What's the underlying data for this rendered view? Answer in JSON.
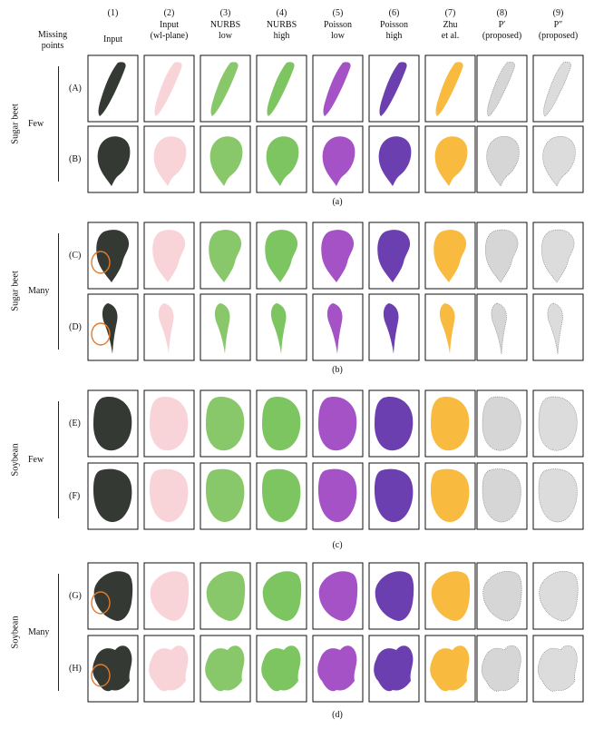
{
  "corner_label": [
    "Missing",
    "points"
  ],
  "columns": [
    {
      "num": "(1)",
      "line1": "Input",
      "line2": "",
      "italic": false
    },
    {
      "num": "(2)",
      "line1": "Input",
      "line2": "(wl-plane)",
      "italic": true
    },
    {
      "num": "(3)",
      "line1": "NURBS",
      "line2": "low",
      "italic": false
    },
    {
      "num": "(4)",
      "line1": "NURBS",
      "line2": "high",
      "italic": false
    },
    {
      "num": "(5)",
      "line1": "Poisson",
      "line2": "low",
      "italic": false
    },
    {
      "num": "(6)",
      "line1": "Poisson",
      "line2": "high",
      "italic": false
    },
    {
      "num": "(7)",
      "line1": "Zhu",
      "line2": "et al.",
      "italic": false
    },
    {
      "num": "(8)",
      "line1": "P′",
      "line2": "(proposed)",
      "italic": false
    },
    {
      "num": "(9)",
      "line1": "P″",
      "line2": "(proposed)",
      "italic": false
    }
  ],
  "groups": [
    {
      "caption": "(a)",
      "species": "Sugar beet",
      "missing": "Few",
      "rows": [
        {
          "label": "(A)",
          "shape": "slim"
        },
        {
          "label": "(B)",
          "shape": "oval"
        }
      ]
    },
    {
      "caption": "(b)",
      "species": "Sugar beet",
      "missing": "Many",
      "rows": [
        {
          "label": "(C)",
          "shape": "broad"
        },
        {
          "label": "(D)",
          "shape": "stem"
        }
      ]
    },
    {
      "caption": "(c)",
      "species": "Soybean",
      "missing": "Few",
      "rows": [
        {
          "label": "(E)",
          "shape": "round"
        },
        {
          "label": "(F)",
          "shape": "round2"
        }
      ]
    },
    {
      "caption": "(d)",
      "species": "Soybean",
      "missing": "Many",
      "rows": [
        {
          "label": "(G)",
          "shape": "fan"
        },
        {
          "label": "(H)",
          "shape": "ragged"
        }
      ]
    }
  ],
  "method_colors": [
    "#1e241e",
    "#f0a0aa",
    "#7cc25a",
    "#6fbf4f",
    "#9a3fc0",
    "#5b2aa6",
    "#f7b22a",
    "#8a8a8a",
    "#9a9a9a"
  ]
}
